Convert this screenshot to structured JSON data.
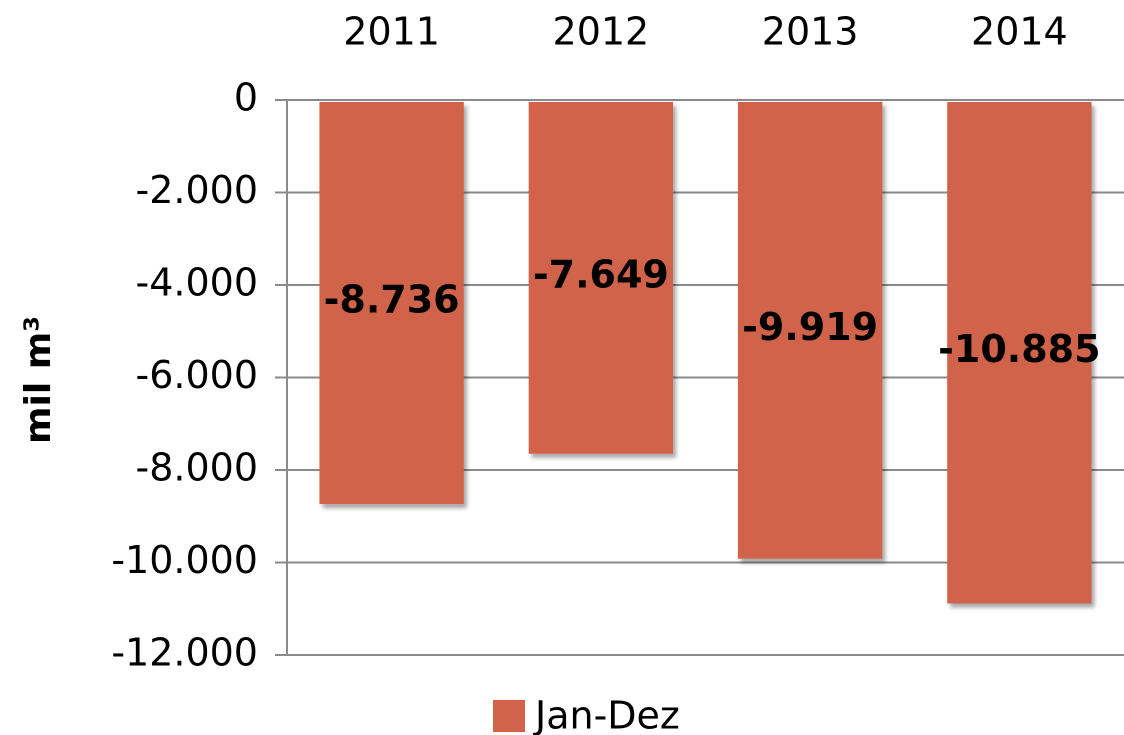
{
  "chart_data": {
    "type": "bar",
    "ylabel": "mil m³",
    "categories": [
      "2011",
      "2012",
      "2013",
      "2014"
    ],
    "series": [
      {
        "name": "Jan-Dez",
        "color": "#d0634a",
        "values": [
          -8736,
          -7649,
          -9919,
          -10885
        ],
        "value_labels": [
          "-8.736",
          "-7.649",
          "-9.919",
          "-10.885"
        ]
      }
    ],
    "ylim": [
      -12000,
      0
    ],
    "yticks": [
      0,
      {
        "value": -2000,
        "label": "-2.000"
      },
      {
        "value": -4000,
        "label": "-4.000"
      },
      {
        "value": -6000,
        "label": "-6.000"
      },
      {
        "value": -8000,
        "label": "-8.000"
      },
      {
        "value": -10000,
        "label": "-10.000"
      },
      {
        "value": -12000,
        "label": "-12.000"
      }
    ],
    "grid": true,
    "legend": "bottom"
  }
}
